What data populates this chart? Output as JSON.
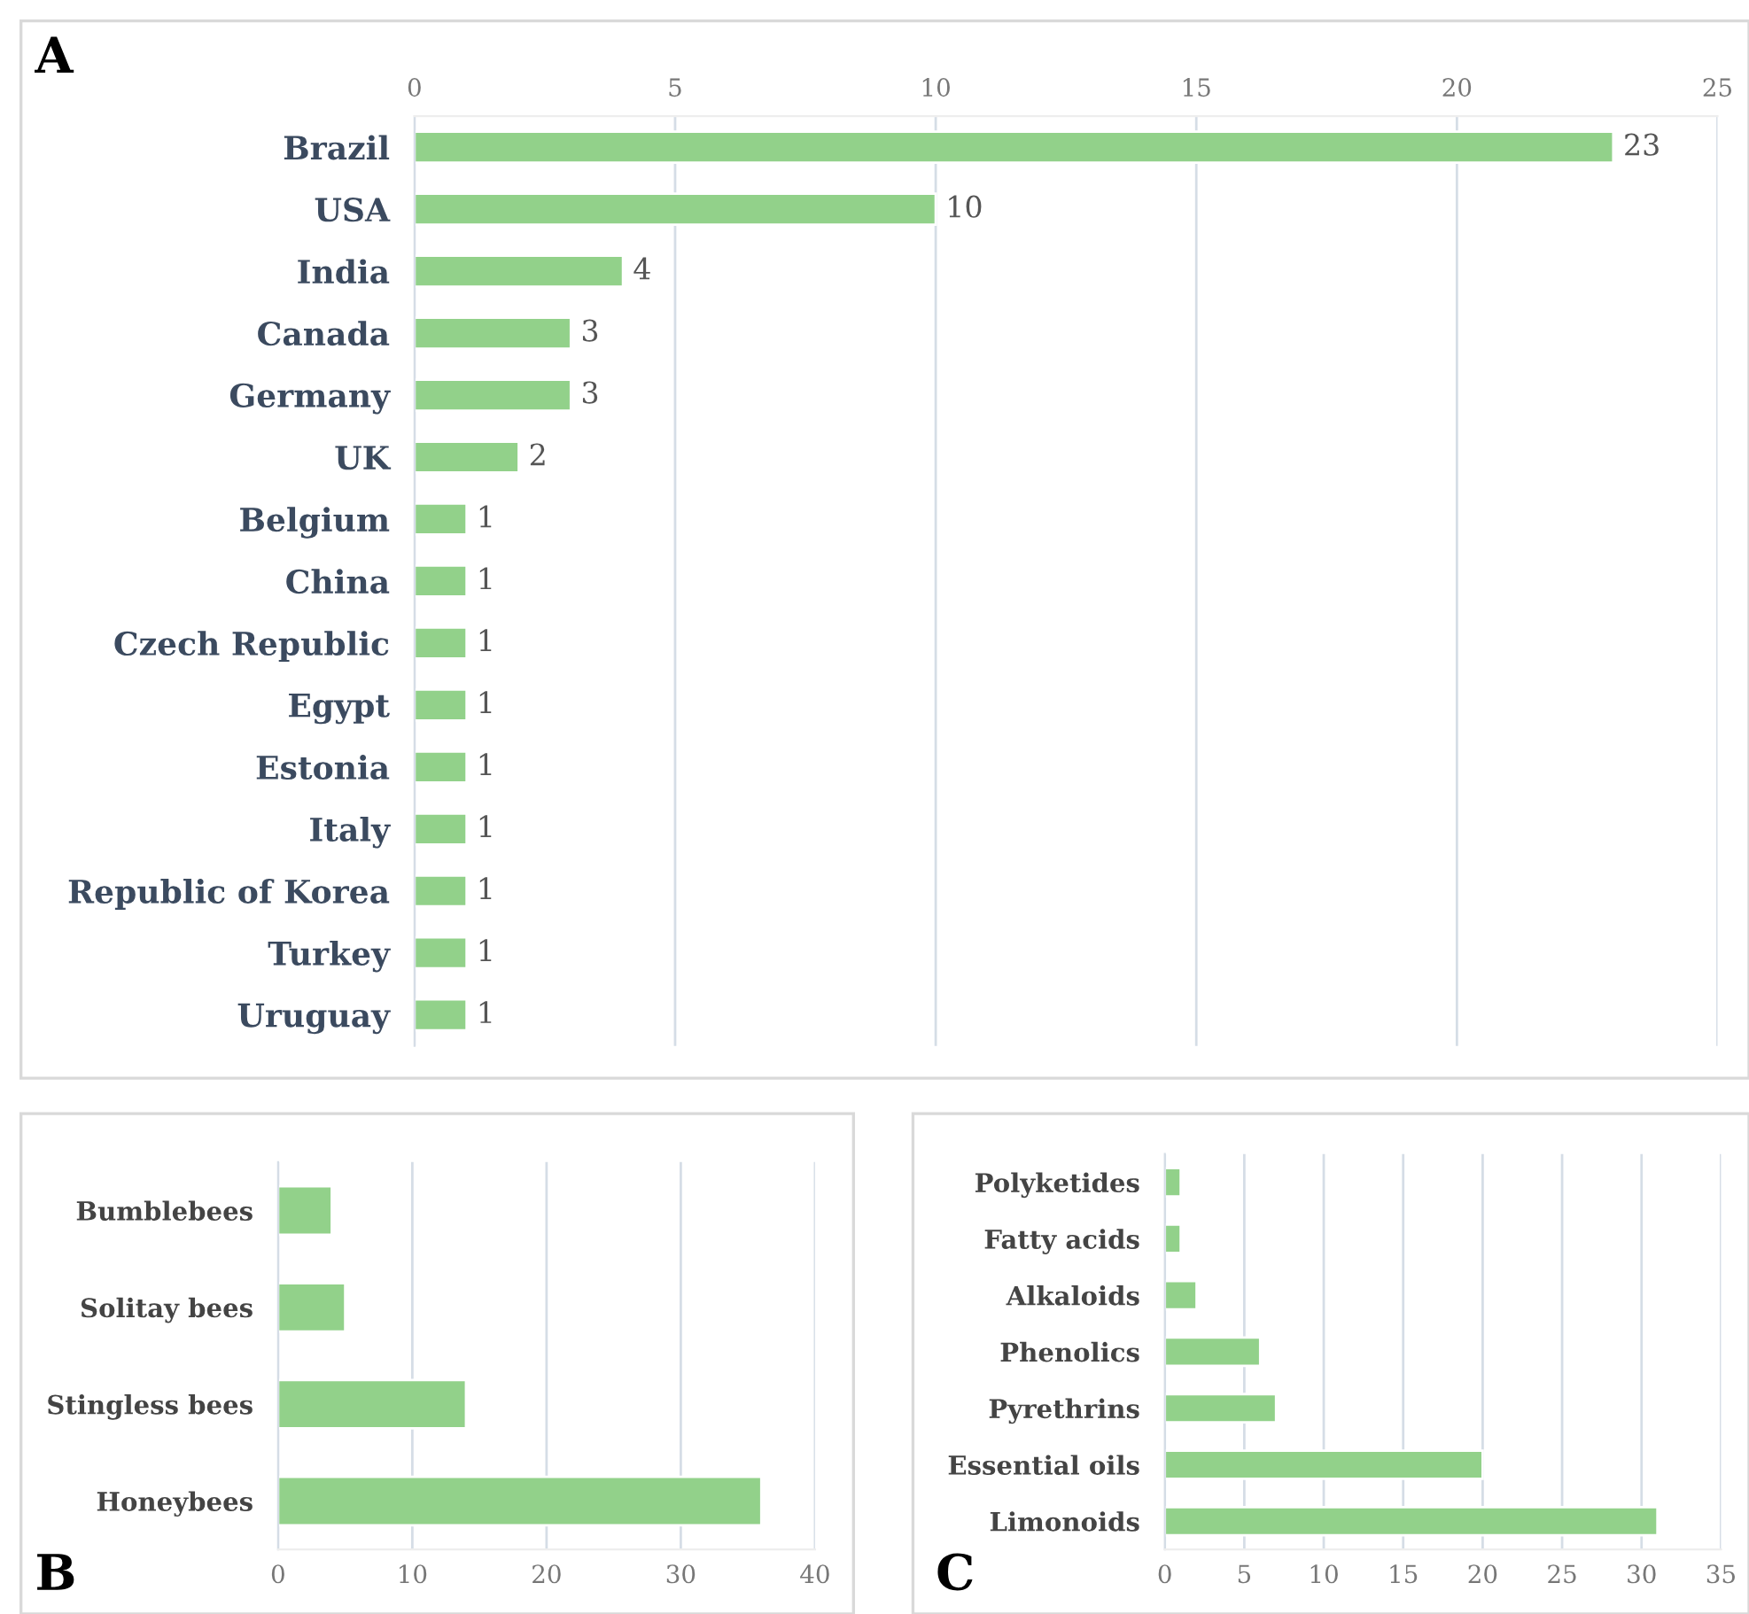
{
  "chart_data": [
    {
      "type": "bar",
      "orientation": "horizontal",
      "categories": [
        "Brazil",
        "USA",
        "India",
        "Canada",
        "Germany",
        "UK",
        "Belgium",
        "China",
        "Czech Republic",
        "Egypt",
        "Estonia",
        "Italy",
        "Republic of Korea",
        "Turkey",
        "Uruguay"
      ],
      "values": [
        23,
        10,
        4,
        3,
        3,
        2,
        1,
        1,
        1,
        1,
        1,
        1,
        1,
        1,
        1
      ],
      "color": "#92d18a",
      "x2lim": [
        0,
        25
      ],
      "x2ticks": [
        0,
        5,
        10,
        15,
        20,
        25
      ],
      "grid": "x",
      "data_labels": true,
      "annotations": [
        "A"
      ]
    },
    {
      "type": "bar",
      "orientation": "horizontal",
      "categories": [
        "Bumblebees",
        "Solitay bees",
        "Stingless bees",
        "Honeybees"
      ],
      "values": [
        4,
        5,
        14,
        36
      ],
      "color": "#92d18a",
      "xlim": [
        0,
        40
      ],
      "xticks": [
        0,
        10,
        20,
        30,
        40
      ],
      "grid": "x",
      "annotations": [
        "B"
      ]
    },
    {
      "type": "bar",
      "orientation": "horizontal",
      "categories": [
        "Polyketides",
        "Fatty acids",
        "Alkaloids",
        "Phenolics",
        "Pyrethrins",
        "Essential oils",
        "Limonoids"
      ],
      "values": [
        1,
        1,
        2,
        6,
        7,
        20,
        31
      ],
      "color": "#92d18a",
      "xlim": [
        0,
        35
      ],
      "xticks": [
        0,
        5,
        10,
        15,
        20,
        25,
        30,
        35
      ],
      "grid": "x",
      "annotations": [
        "C"
      ]
    }
  ]
}
